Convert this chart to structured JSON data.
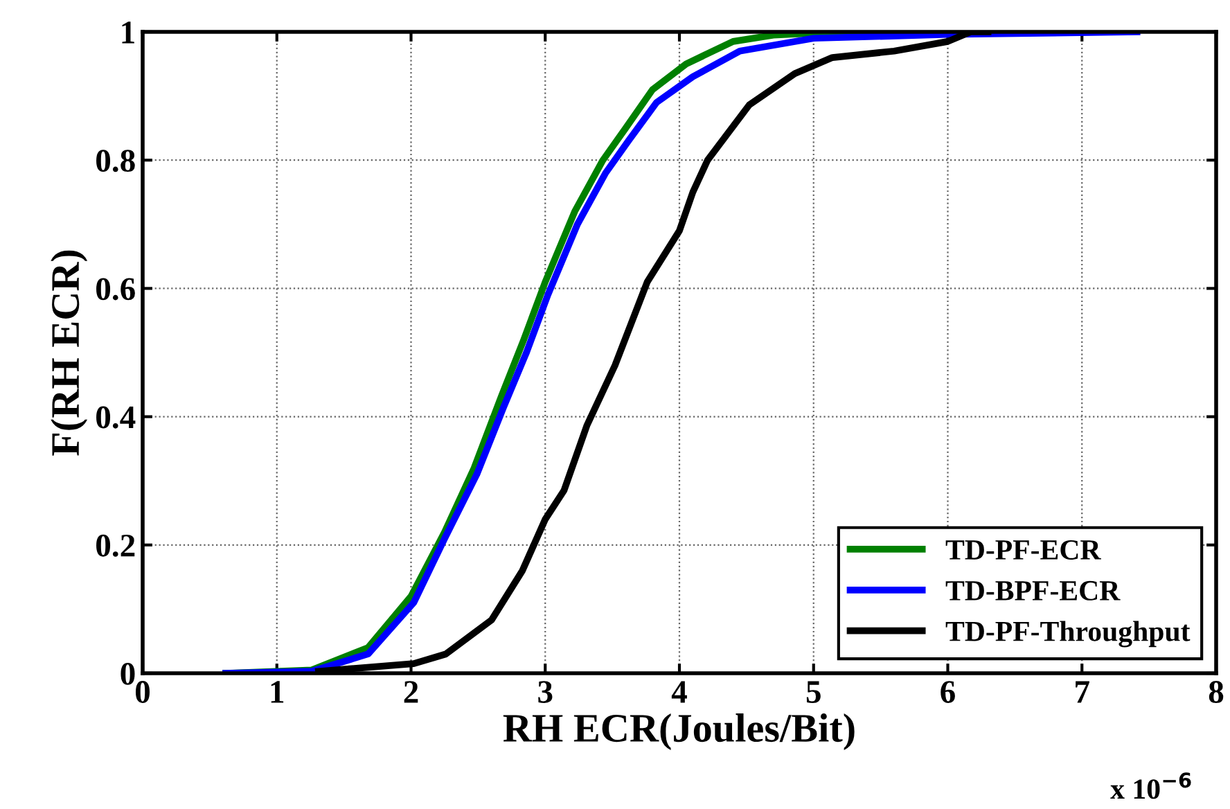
{
  "chart_data": {
    "type": "line",
    "xlabel": "RH ECR(Joules/Bit)",
    "ylabel": "F(RH ECR)",
    "annotations": [
      "x 10$^{−6}$"
    ],
    "series": [
      {
        "name": "TD-PF-ECR",
        "color": "#008000",
        "x": [
          0.62,
          1.26,
          1.68,
          2.0,
          2.25,
          2.47,
          2.67,
          2.84,
          3.0,
          3.22,
          3.43,
          3.6,
          3.8,
          4.05,
          4.4,
          4.7,
          5.0,
          5.5,
          6.0
        ],
        "values": [
          0,
          0.005,
          0.04,
          0.12,
          0.22,
          0.32,
          0.43,
          0.52,
          0.61,
          0.72,
          0.8,
          0.85,
          0.91,
          0.95,
          0.985,
          0.995,
          0.998,
          1,
          1
        ]
      },
      {
        "name": "TD-BPF-ECR",
        "color": "#0000ff",
        "x": [
          0.62,
          1.26,
          1.68,
          2.02,
          2.25,
          2.49,
          2.69,
          2.86,
          3.02,
          3.24,
          3.45,
          3.62,
          3.83,
          4.1,
          4.45,
          5.0,
          6.0,
          7.41
        ],
        "values": [
          0,
          0.003,
          0.03,
          0.11,
          0.21,
          0.31,
          0.415,
          0.5,
          0.59,
          0.7,
          0.78,
          0.83,
          0.89,
          0.93,
          0.97,
          0.99,
          0.996,
          1
        ]
      },
      {
        "name": "TD-PF-Throughput",
        "color": "#000000",
        "x": [
          1.31,
          2.02,
          2.26,
          2.6,
          2.83,
          3.0,
          3.14,
          3.31,
          3.52,
          3.76,
          4.0,
          4.1,
          4.21,
          4.52,
          4.86,
          5.14,
          5.6,
          6.0,
          6.17,
          6.3
        ],
        "values": [
          0.003,
          0.015,
          0.03,
          0.083,
          0.16,
          0.24,
          0.285,
          0.386,
          0.48,
          0.61,
          0.69,
          0.75,
          0.8,
          0.886,
          0.935,
          0.96,
          0.97,
          0.985,
          1,
          1
        ]
      }
    ],
    "xlim": [
      0,
      8
    ],
    "ylim": [
      0,
      1
    ],
    "xticks": [
      0,
      1,
      2,
      3,
      4,
      5,
      6,
      7,
      8
    ],
    "yticks": [
      0,
      0.2,
      0.4,
      0.6,
      0.8,
      1
    ],
    "grid": true,
    "legend": "bottom right",
    "marker": "none",
    "line_style": "solid"
  }
}
